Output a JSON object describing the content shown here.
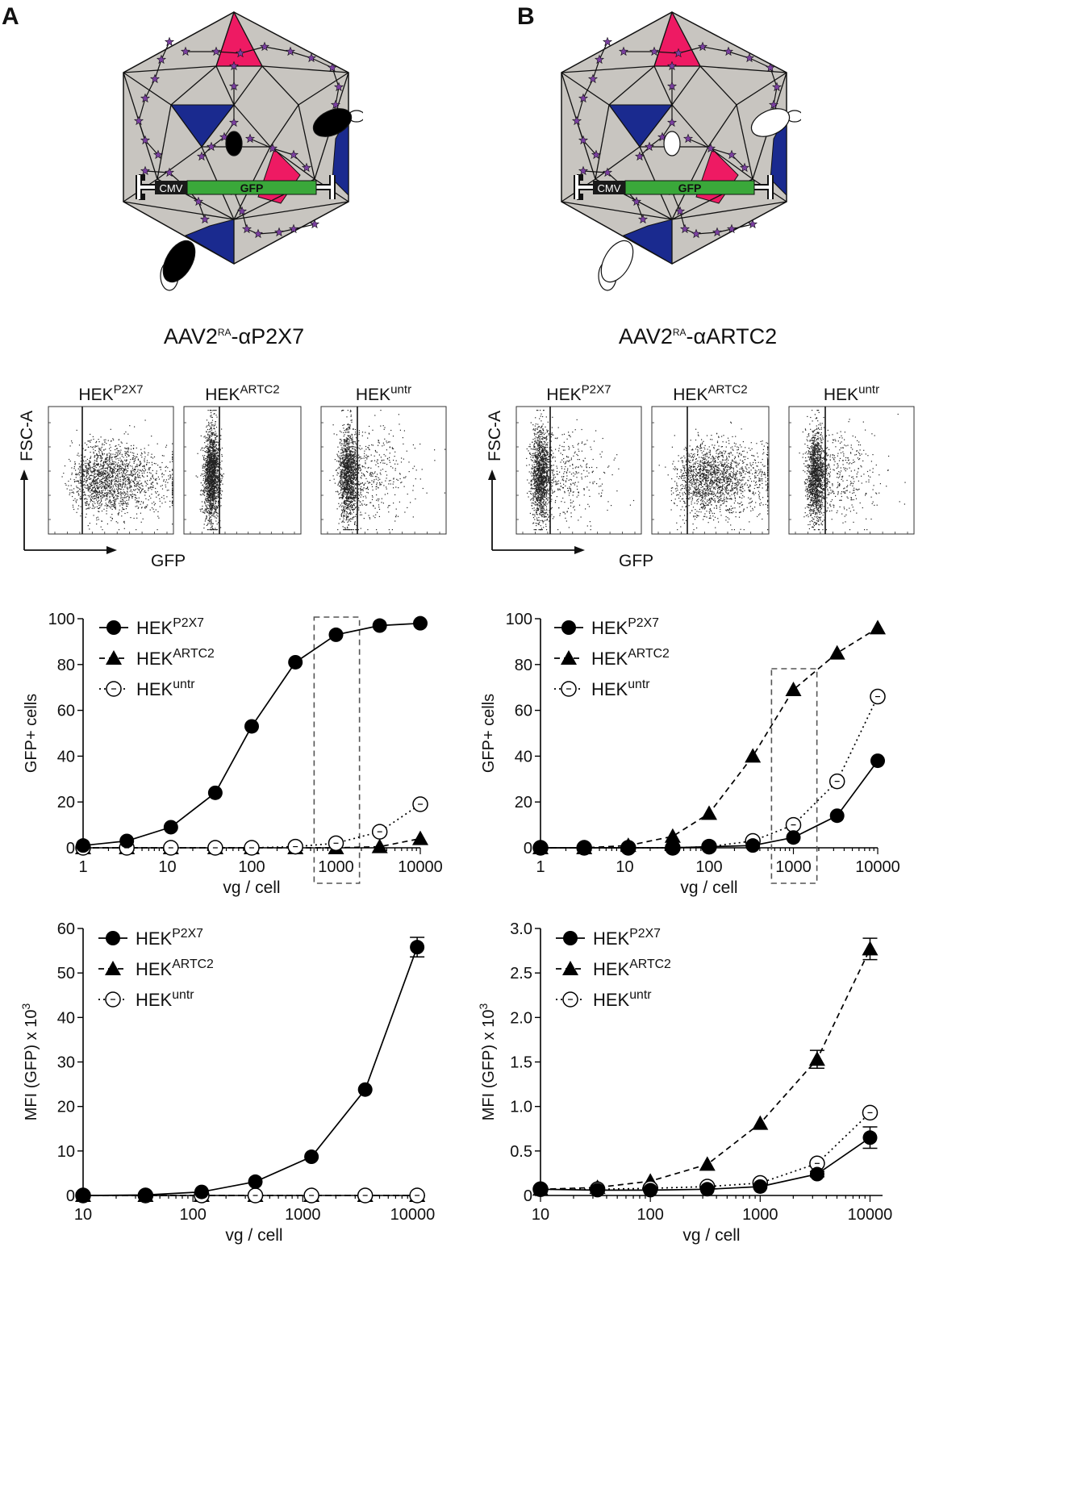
{
  "panels": [
    {
      "letter": "A",
      "construct": {
        "base": "AAV2",
        "sup": "RA",
        "rest": "-αP2X7"
      },
      "capsid": {
        "promoter": "CMV",
        "transgene": "GFP",
        "nanobody_fill": "#000000"
      },
      "flow": {
        "y_axis_label": "FSC-A",
        "x_axis_label": "GFP",
        "plots": [
          {
            "base": "HEK",
            "sup": "P2X7",
            "pattern": "wide"
          },
          {
            "base": "HEK",
            "sup": "ARTC2",
            "pattern": "narrow"
          },
          {
            "base": "HEK",
            "sup": "untr",
            "pattern": "narrow-tail"
          }
        ]
      }
    },
    {
      "letter": "B",
      "construct": {
        "base": "AAV2",
        "sup": "RA",
        "rest": "-αARTC2"
      },
      "capsid": {
        "promoter": "CMV",
        "transgene": "GFP",
        "nanobody_fill": "#ffffff"
      },
      "flow": {
        "y_axis_label": "FSC-A",
        "x_axis_label": "GFP",
        "plots": [
          {
            "base": "HEK",
            "sup": "P2X7",
            "pattern": "narrow-tail"
          },
          {
            "base": "HEK",
            "sup": "ARTC2",
            "pattern": "wide"
          },
          {
            "base": "HEK",
            "sup": "untr",
            "pattern": "narrow-tail2"
          }
        ]
      }
    }
  ],
  "colors": {
    "capsid_face": "#c8c5c0",
    "pink": "#ee1a63",
    "blue": "#1a2a8f",
    "green": "#3aa83a",
    "star": "#7a3fa0"
  },
  "chart_data": [
    {
      "type": "line",
      "id": "A-gfp",
      "ylabel": "GFP+ cells",
      "xlabel": "vg / cell",
      "xscale": "log",
      "xlim": [
        1,
        10000
      ],
      "ylim": [
        0,
        100
      ],
      "yticks": [
        0,
        20,
        40,
        60,
        80,
        100
      ],
      "xticks": [
        1,
        10,
        100,
        1000,
        10000
      ],
      "highlight_range": [
        550,
        1900
      ],
      "series": [
        {
          "base": "HEK",
          "sup": "P2X7",
          "marker": "circle",
          "style": "solid",
          "x": [
            1,
            3.3,
            11,
            37,
            100,
            330,
            1000,
            3300,
            10000
          ],
          "y": [
            1,
            3,
            9,
            24,
            53,
            81,
            93,
            97,
            98
          ]
        },
        {
          "base": "HEK",
          "sup": "ARTC2",
          "marker": "triangle",
          "style": "dashed",
          "x": [
            1,
            3.3,
            11,
            37,
            100,
            330,
            1000,
            3300,
            10000
          ],
          "y": [
            0,
            0,
            0,
            0,
            0,
            0,
            0,
            0.5,
            4
          ]
        },
        {
          "base": "HEK",
          "sup": "untr",
          "marker": "open-circle",
          "style": "dotted",
          "x": [
            1,
            3.3,
            11,
            37,
            100,
            330,
            1000,
            3300,
            10000
          ],
          "y": [
            0,
            0,
            0,
            0,
            0,
            0.5,
            2,
            7,
            19
          ]
        }
      ]
    },
    {
      "type": "line",
      "id": "B-gfp",
      "ylabel": "GFP+ cells",
      "xlabel": "vg / cell",
      "xscale": "log",
      "xlim": [
        1,
        10000
      ],
      "ylim": [
        0,
        100
      ],
      "yticks": [
        0,
        20,
        40,
        60,
        80,
        100
      ],
      "xticks": [
        1,
        10,
        100,
        1000,
        10000
      ],
      "highlight_range": [
        550,
        1900
      ],
      "series": [
        {
          "base": "HEK",
          "sup": "P2X7",
          "marker": "circle",
          "style": "solid",
          "x": [
            1,
            3.3,
            11,
            37,
            100,
            330,
            1000,
            3300,
            10000
          ],
          "y": [
            0,
            0,
            0,
            0,
            0.5,
            1,
            4.5,
            14,
            38
          ]
        },
        {
          "base": "HEK",
          "sup": "ARTC2",
          "marker": "triangle",
          "style": "dashed",
          "x": [
            1,
            3.3,
            11,
            37,
            100,
            330,
            1000,
            3300,
            10000
          ],
          "y": [
            0,
            0,
            1,
            5,
            15,
            40,
            69,
            85,
            96
          ]
        },
        {
          "base": "HEK",
          "sup": "untr",
          "marker": "open-circle",
          "style": "dotted",
          "x": [
            1,
            3.3,
            11,
            37,
            100,
            330,
            1000,
            3300,
            10000
          ],
          "y": [
            0,
            0,
            0,
            0,
            0.5,
            3,
            10,
            29,
            66
          ]
        }
      ]
    },
    {
      "type": "line",
      "id": "A-mfi",
      "ylabel": "MFI (GFP) x 10",
      "ylabel_sup": "3",
      "xlabel": "vg / cell",
      "xscale": "log",
      "xlim": [
        10,
        13000
      ],
      "ylim": [
        0,
        60
      ],
      "yticks": [
        0,
        10,
        20,
        30,
        40,
        50,
        60
      ],
      "xticks": [
        10,
        100,
        1000,
        10000
      ],
      "series": [
        {
          "base": "HEK",
          "sup": "P2X7",
          "marker": "circle",
          "style": "solid",
          "x": [
            10,
            37,
            120,
            370,
            1200,
            3700,
            11000
          ],
          "y": [
            0,
            0.1,
            0.8,
            3.1,
            8.7,
            23.8,
            55.8
          ],
          "err": [
            0,
            0,
            0,
            0,
            0,
            0,
            2.2
          ]
        },
        {
          "base": "HEK",
          "sup": "ARTC2",
          "marker": "triangle",
          "style": "dashed",
          "x": [
            10,
            37,
            120,
            370,
            1200,
            3700,
            11000
          ],
          "y": [
            0,
            0,
            0,
            0,
            0,
            0,
            0
          ]
        },
        {
          "base": "HEK",
          "sup": "untr",
          "marker": "open-circle",
          "style": "dotted",
          "x": [
            10,
            37,
            120,
            370,
            1200,
            3700,
            11000
          ],
          "y": [
            0,
            0,
            0,
            0,
            0,
            0,
            0
          ]
        }
      ]
    },
    {
      "type": "line",
      "id": "B-mfi",
      "ylabel": "MFI (GFP) x 10",
      "ylabel_sup": "3",
      "xlabel": "vg / cell",
      "xscale": "log",
      "xlim": [
        10,
        13000
      ],
      "ylim": [
        0,
        3.0
      ],
      "yticks": [
        0,
        0.5,
        1.0,
        1.5,
        2.0,
        2.5,
        3.0
      ],
      "ytick_labels": [
        "0",
        "0.5",
        "1.0",
        "1.5",
        "2.0",
        "2.5",
        "3.0"
      ],
      "xticks": [
        10,
        100,
        1000,
        10000
      ],
      "series": [
        {
          "base": "HEK",
          "sup": "P2X7",
          "marker": "circle",
          "style": "solid",
          "x": [
            10,
            33,
            100,
            330,
            1000,
            3300,
            10000
          ],
          "y": [
            0.07,
            0.06,
            0.06,
            0.07,
            0.1,
            0.24,
            0.65
          ],
          "err": [
            0,
            0,
            0,
            0,
            0,
            0.03,
            0.12
          ]
        },
        {
          "base": "HEK",
          "sup": "ARTC2",
          "marker": "triangle",
          "style": "dashed",
          "x": [
            10,
            33,
            100,
            330,
            1000,
            3300,
            10000
          ],
          "y": [
            0.07,
            0.09,
            0.16,
            0.35,
            0.81,
            1.53,
            2.77
          ],
          "err": [
            0,
            0,
            0,
            0,
            0,
            0.1,
            0.12
          ]
        },
        {
          "base": "HEK",
          "sup": "untr",
          "marker": "open-circle",
          "style": "dotted",
          "x": [
            10,
            33,
            100,
            330,
            1000,
            3300,
            10000
          ],
          "y": [
            0.07,
            0.07,
            0.08,
            0.1,
            0.14,
            0.36,
            0.93
          ]
        }
      ]
    }
  ]
}
